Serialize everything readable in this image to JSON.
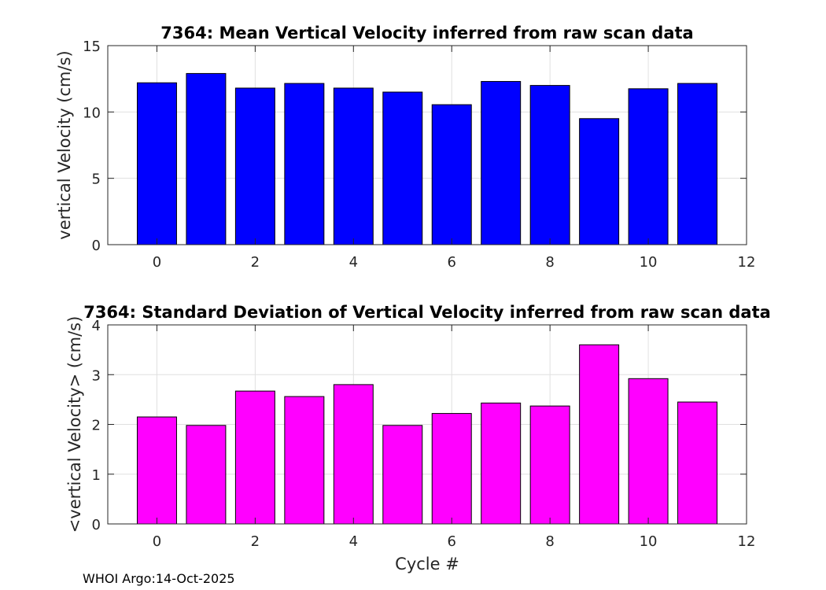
{
  "colors": {
    "top_bars": "#0000ff",
    "bottom_bars": "#ff00ff",
    "grid": "#e0e0e0",
    "axis": "#262626"
  },
  "footer": "WHOI Argo:14-Oct-2025",
  "chart_data": [
    {
      "type": "bar",
      "title": "7364: Mean Vertical Velocity inferred from raw scan data",
      "xlabel": "",
      "ylabel": "vertical Velocity (cm/s)",
      "x": [
        0,
        1,
        2,
        3,
        4,
        5,
        6,
        7,
        8,
        9,
        10,
        11
      ],
      "values": [
        12.2,
        12.9,
        11.8,
        12.15,
        11.8,
        11.5,
        10.55,
        12.3,
        12.0,
        9.5,
        11.75,
        12.15
      ],
      "xlim": [
        -1,
        12
      ],
      "ylim": [
        0,
        15
      ],
      "xticks": [
        0,
        2,
        4,
        6,
        8,
        10,
        12
      ],
      "yticks": [
        0,
        5,
        10,
        15
      ],
      "grid": true
    },
    {
      "type": "bar",
      "title": "7364: Standard Deviation of Vertical Velocity inferred from raw scan data",
      "xlabel": "Cycle #",
      "ylabel": "<vertical Velocity> (cm/s)",
      "x": [
        0,
        1,
        2,
        3,
        4,
        5,
        6,
        7,
        8,
        9,
        10,
        11
      ],
      "values": [
        2.15,
        1.98,
        2.67,
        2.56,
        2.8,
        1.98,
        2.22,
        2.43,
        2.37,
        3.6,
        2.92,
        2.45
      ],
      "xlim": [
        -1,
        12
      ],
      "ylim": [
        0,
        4
      ],
      "xticks": [
        0,
        2,
        4,
        6,
        8,
        10,
        12
      ],
      "yticks": [
        0,
        1,
        2,
        3,
        4
      ],
      "grid": true
    }
  ]
}
